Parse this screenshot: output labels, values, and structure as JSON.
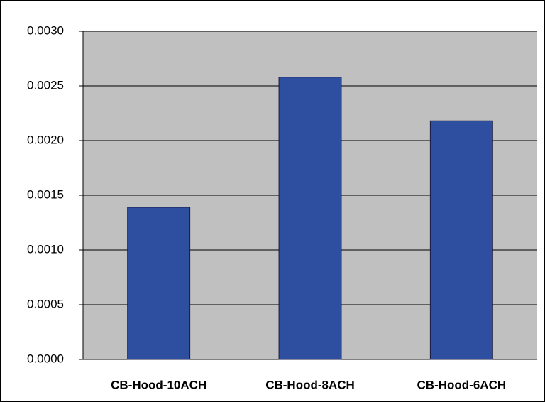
{
  "chart_data": {
    "type": "bar",
    "categories": [
      "CB-Hood-10ACH",
      "CB-Hood-8ACH",
      "CB-Hood-6ACH"
    ],
    "values": [
      0.00139,
      0.00258,
      0.00218
    ],
    "color": "#2e4fa0",
    "ylim": [
      0,
      0.003
    ],
    "yticks": [
      {
        "value": 0,
        "label": "0.0000"
      },
      {
        "value": 0.0005,
        "label": "0.0005"
      },
      {
        "value": 0.001,
        "label": "0.0010"
      },
      {
        "value": 0.0015,
        "label": "0.0015"
      },
      {
        "value": 0.002,
        "label": "0.0020"
      },
      {
        "value": 0.0025,
        "label": "0.0025"
      },
      {
        "value": 0.003,
        "label": "0.0030"
      }
    ],
    "grid": true
  }
}
